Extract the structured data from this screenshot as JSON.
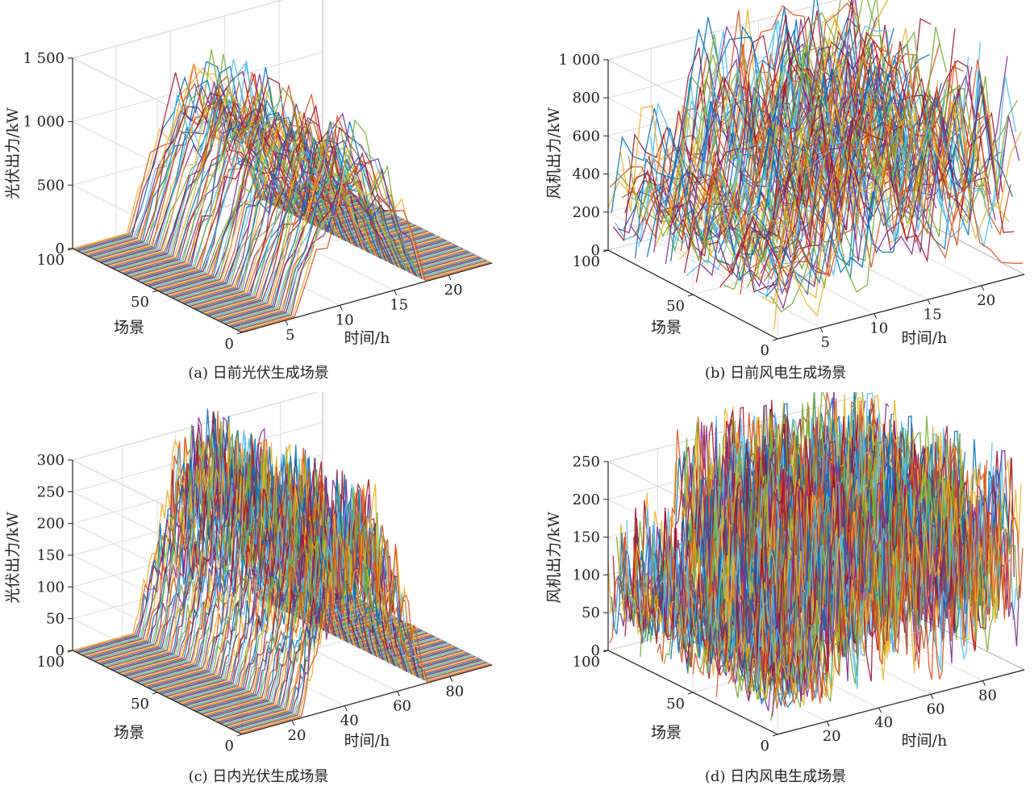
{
  "palette": [
    "#0072BD",
    "#D95319",
    "#EDB120",
    "#7E2F8E",
    "#77AC30",
    "#4DBEEE",
    "#A2142F"
  ],
  "panels": [
    {
      "caption": "(a) 日前光伏生成场景"
    },
    {
      "caption": "(b) 日前风电生成场景"
    },
    {
      "caption": "(c) 日内光伏生成场景"
    },
    {
      "caption": "(d) 日内风电生成场景"
    }
  ],
  "chart_data": [
    {
      "type": "line",
      "subtype": "3d-waterfall",
      "title": "",
      "source": "pv",
      "xlabel": "时间/h",
      "ylabel": "场景",
      "zlabel": "光伏出力/kW",
      "x_ticks": [
        5,
        10,
        15,
        20
      ],
      "x_tick_labels": [
        "5",
        "10",
        "15",
        "20"
      ],
      "x_range": [
        1,
        24
      ],
      "y_ticks": [
        0,
        50,
        100
      ],
      "y_tick_labels": [
        "0",
        "50",
        "100"
      ],
      "y_range": [
        0,
        100
      ],
      "z_ticks": [
        0,
        500,
        1000,
        1500
      ],
      "z_tick_labels": [
        "0",
        "500",
        "1 000",
        "1 500"
      ],
      "z_range": [
        0,
        1500
      ],
      "n_scenarios": 100,
      "n_points": 24,
      "peak_value": 1350,
      "active_hours": [
        6,
        18
      ],
      "grid": true
    },
    {
      "type": "line",
      "subtype": "3d-waterfall",
      "title": "",
      "source": "wind",
      "xlabel": "时间/h",
      "ylabel": "场景",
      "zlabel": "风机出力/kW",
      "x_ticks": [
        5,
        10,
        15,
        20
      ],
      "x_tick_labels": [
        "5",
        "10",
        "15",
        "20"
      ],
      "x_range": [
        1,
        24
      ],
      "y_ticks": [
        0,
        50,
        100
      ],
      "y_tick_labels": [
        "0",
        "50",
        "100"
      ],
      "y_range": [
        0,
        100
      ],
      "z_ticks": [
        0,
        200,
        400,
        600,
        800,
        1000
      ],
      "z_tick_labels": [
        "0",
        "200",
        "400",
        "600",
        "800",
        "1 000"
      ],
      "z_range": [
        0,
        1000
      ],
      "n_scenarios": 100,
      "n_points": 24,
      "peak_value": 1100,
      "grid": true
    },
    {
      "type": "line",
      "subtype": "3d-waterfall",
      "title": "",
      "source": "pv",
      "xlabel": "时间/h",
      "ylabel": "场景",
      "zlabel": "光伏出力/kW",
      "x_ticks": [
        20,
        40,
        60,
        80
      ],
      "x_tick_labels": [
        "20",
        "40",
        "60",
        "80"
      ],
      "x_range": [
        1,
        96
      ],
      "y_ticks": [
        0,
        50,
        100
      ],
      "y_tick_labels": [
        "0",
        "50",
        "100"
      ],
      "y_range": [
        0,
        100
      ],
      "z_ticks": [
        0,
        50,
        100,
        150,
        200,
        250,
        300
      ],
      "z_tick_labels": [
        "0",
        "50",
        "100",
        "150",
        "200",
        "250",
        "300"
      ],
      "z_range": [
        0,
        300
      ],
      "n_scenarios": 100,
      "n_points": 96,
      "peak_value": 330,
      "active_hours": [
        24,
        72
      ],
      "grid": true
    },
    {
      "type": "line",
      "subtype": "3d-waterfall",
      "title": "",
      "source": "wind",
      "xlabel": "时间/h",
      "ylabel": "场景",
      "zlabel": "风机出力/kW",
      "x_ticks": [
        20,
        40,
        60,
        80
      ],
      "x_tick_labels": [
        "20",
        "40",
        "60",
        "80"
      ],
      "x_range": [
        1,
        96
      ],
      "y_ticks": [
        0,
        50,
        100
      ],
      "y_tick_labels": [
        "0",
        "50",
        "100"
      ],
      "y_range": [
        0,
        100
      ],
      "z_ticks": [
        0,
        50,
        100,
        150,
        200,
        250
      ],
      "z_tick_labels": [
        "0",
        "50",
        "100",
        "150",
        "200",
        "250"
      ],
      "z_range": [
        0,
        250
      ],
      "n_scenarios": 100,
      "n_points": 96,
      "peak_value": 280,
      "grid": true
    }
  ]
}
